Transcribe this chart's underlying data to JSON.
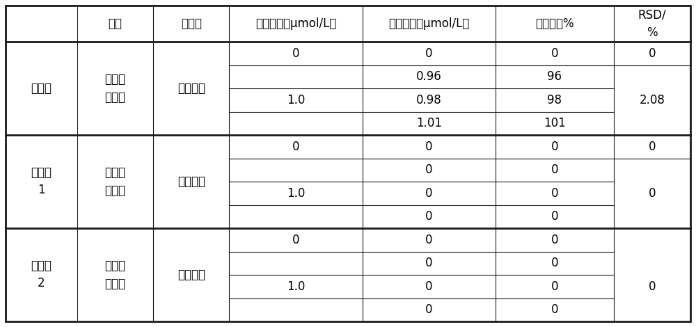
{
  "col_labels": [
    "",
    "样品",
    "分析物",
    "添加量／（μmol/L）",
    "测得值／（μmol/L）",
    "回收率／%",
    "RSD/\n%"
  ],
  "sections": [
    {
      "label": "实施例",
      "sample": "某养鱼\n场水样",
      "analyte": "呻喂唠酵",
      "row0_add": "0",
      "row0_measured": "0",
      "row0_recovery": "0",
      "row0_rsd": "0",
      "merged_add": "1.0",
      "sub_measured": [
        "0.96",
        "0.98",
        "1.01"
      ],
      "sub_recovery": [
        "96",
        "98",
        "101"
      ],
      "merged_rsd": "2.08"
    },
    {
      "label": "比较例\n1",
      "sample": "某养鱼\n场水样",
      "analyte": "呻喂唠酵",
      "row0_add": "0",
      "row0_measured": "0",
      "row0_recovery": "0",
      "row0_rsd": "0",
      "merged_add": "1.0",
      "sub_measured": [
        "0",
        "0",
        "0"
      ],
      "sub_recovery": [
        "0",
        "0",
        "0"
      ],
      "merged_rsd": "0"
    },
    {
      "label": "比较例\n2",
      "sample": "某养鱼\n场水样",
      "analyte": "呻喂唠酵",
      "row0_add": "0",
      "row0_measured": "0",
      "row0_recovery": "0",
      "row0_rsd": "",
      "merged_add": "1.0",
      "sub_measured": [
        "0",
        "0",
        "0"
      ],
      "sub_recovery": [
        "0",
        "0",
        "0"
      ],
      "merged_rsd": "0"
    }
  ],
  "bg_color": "#ffffff",
  "border_color": "#1a1a1a",
  "thick_lw": 2.0,
  "thin_lw": 0.8,
  "font_size": 12,
  "header_font_size": 12
}
